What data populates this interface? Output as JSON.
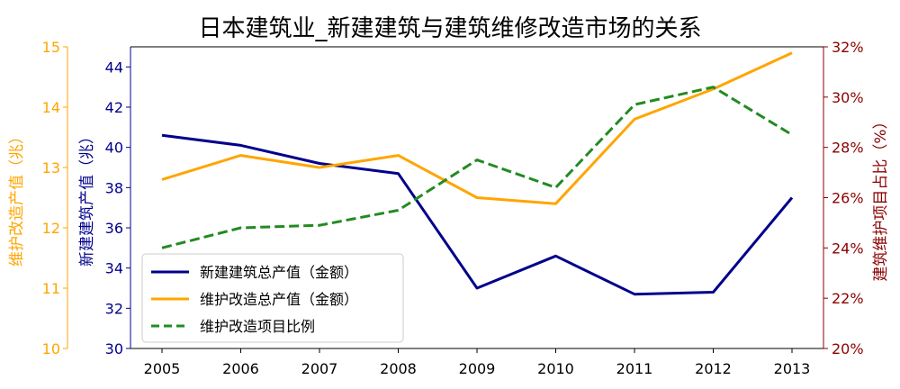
{
  "chart_data": {
    "type": "line",
    "title": "日本建筑业_新建建筑与建筑维修改造市场的关系",
    "categories": [
      "2005",
      "2006",
      "2007",
      "2008",
      "2009",
      "2010",
      "2011",
      "2012",
      "2013"
    ],
    "axes": {
      "left_outer": {
        "label": "维护改造产值（兆）",
        "range": [
          10,
          15
        ],
        "ticks": [
          "10",
          "11",
          "12",
          "13",
          "14",
          "15"
        ],
        "tick_values": [
          10,
          11,
          12,
          13,
          14,
          15
        ],
        "color": "#ffa500"
      },
      "left_inner": {
        "label": "新建建筑产值（兆）",
        "range": [
          30,
          45
        ],
        "ticks": [
          "30",
          "32",
          "34",
          "36",
          "38",
          "40",
          "42",
          "44"
        ],
        "tick_values": [
          30,
          32,
          34,
          36,
          38,
          40,
          42,
          44
        ],
        "color": "#00008b"
      },
      "right": {
        "label": "建筑维护项目占比（%）",
        "range": [
          20,
          32
        ],
        "ticks": [
          "20%",
          "22%",
          "24%",
          "26%",
          "28%",
          "30%",
          "32%"
        ],
        "tick_values": [
          20,
          22,
          24,
          26,
          28,
          30,
          32
        ],
        "color": "#8b0000"
      }
    },
    "series": [
      {
        "name": "新建建筑总产值（金额）",
        "axis": "left_inner",
        "color": "#00008b",
        "dash": "solid",
        "values": [
          40.6,
          40.1,
          39.2,
          38.7,
          33.0,
          34.6,
          32.7,
          32.8,
          37.5
        ]
      },
      {
        "name": "维护改造总产值（金额）",
        "axis": "left_outer",
        "color": "#ffa500",
        "dash": "solid",
        "values": [
          12.8,
          13.2,
          13.0,
          13.2,
          12.5,
          12.4,
          13.8,
          14.3,
          14.9
        ]
      },
      {
        "name": "维护改造项目比例",
        "axis": "right",
        "color": "#228b22",
        "dash": "dashed",
        "values": [
          24.0,
          24.8,
          24.9,
          25.5,
          27.5,
          26.4,
          29.7,
          30.4,
          28.5
        ]
      }
    ],
    "legend": "lower-left",
    "grid": false
  }
}
